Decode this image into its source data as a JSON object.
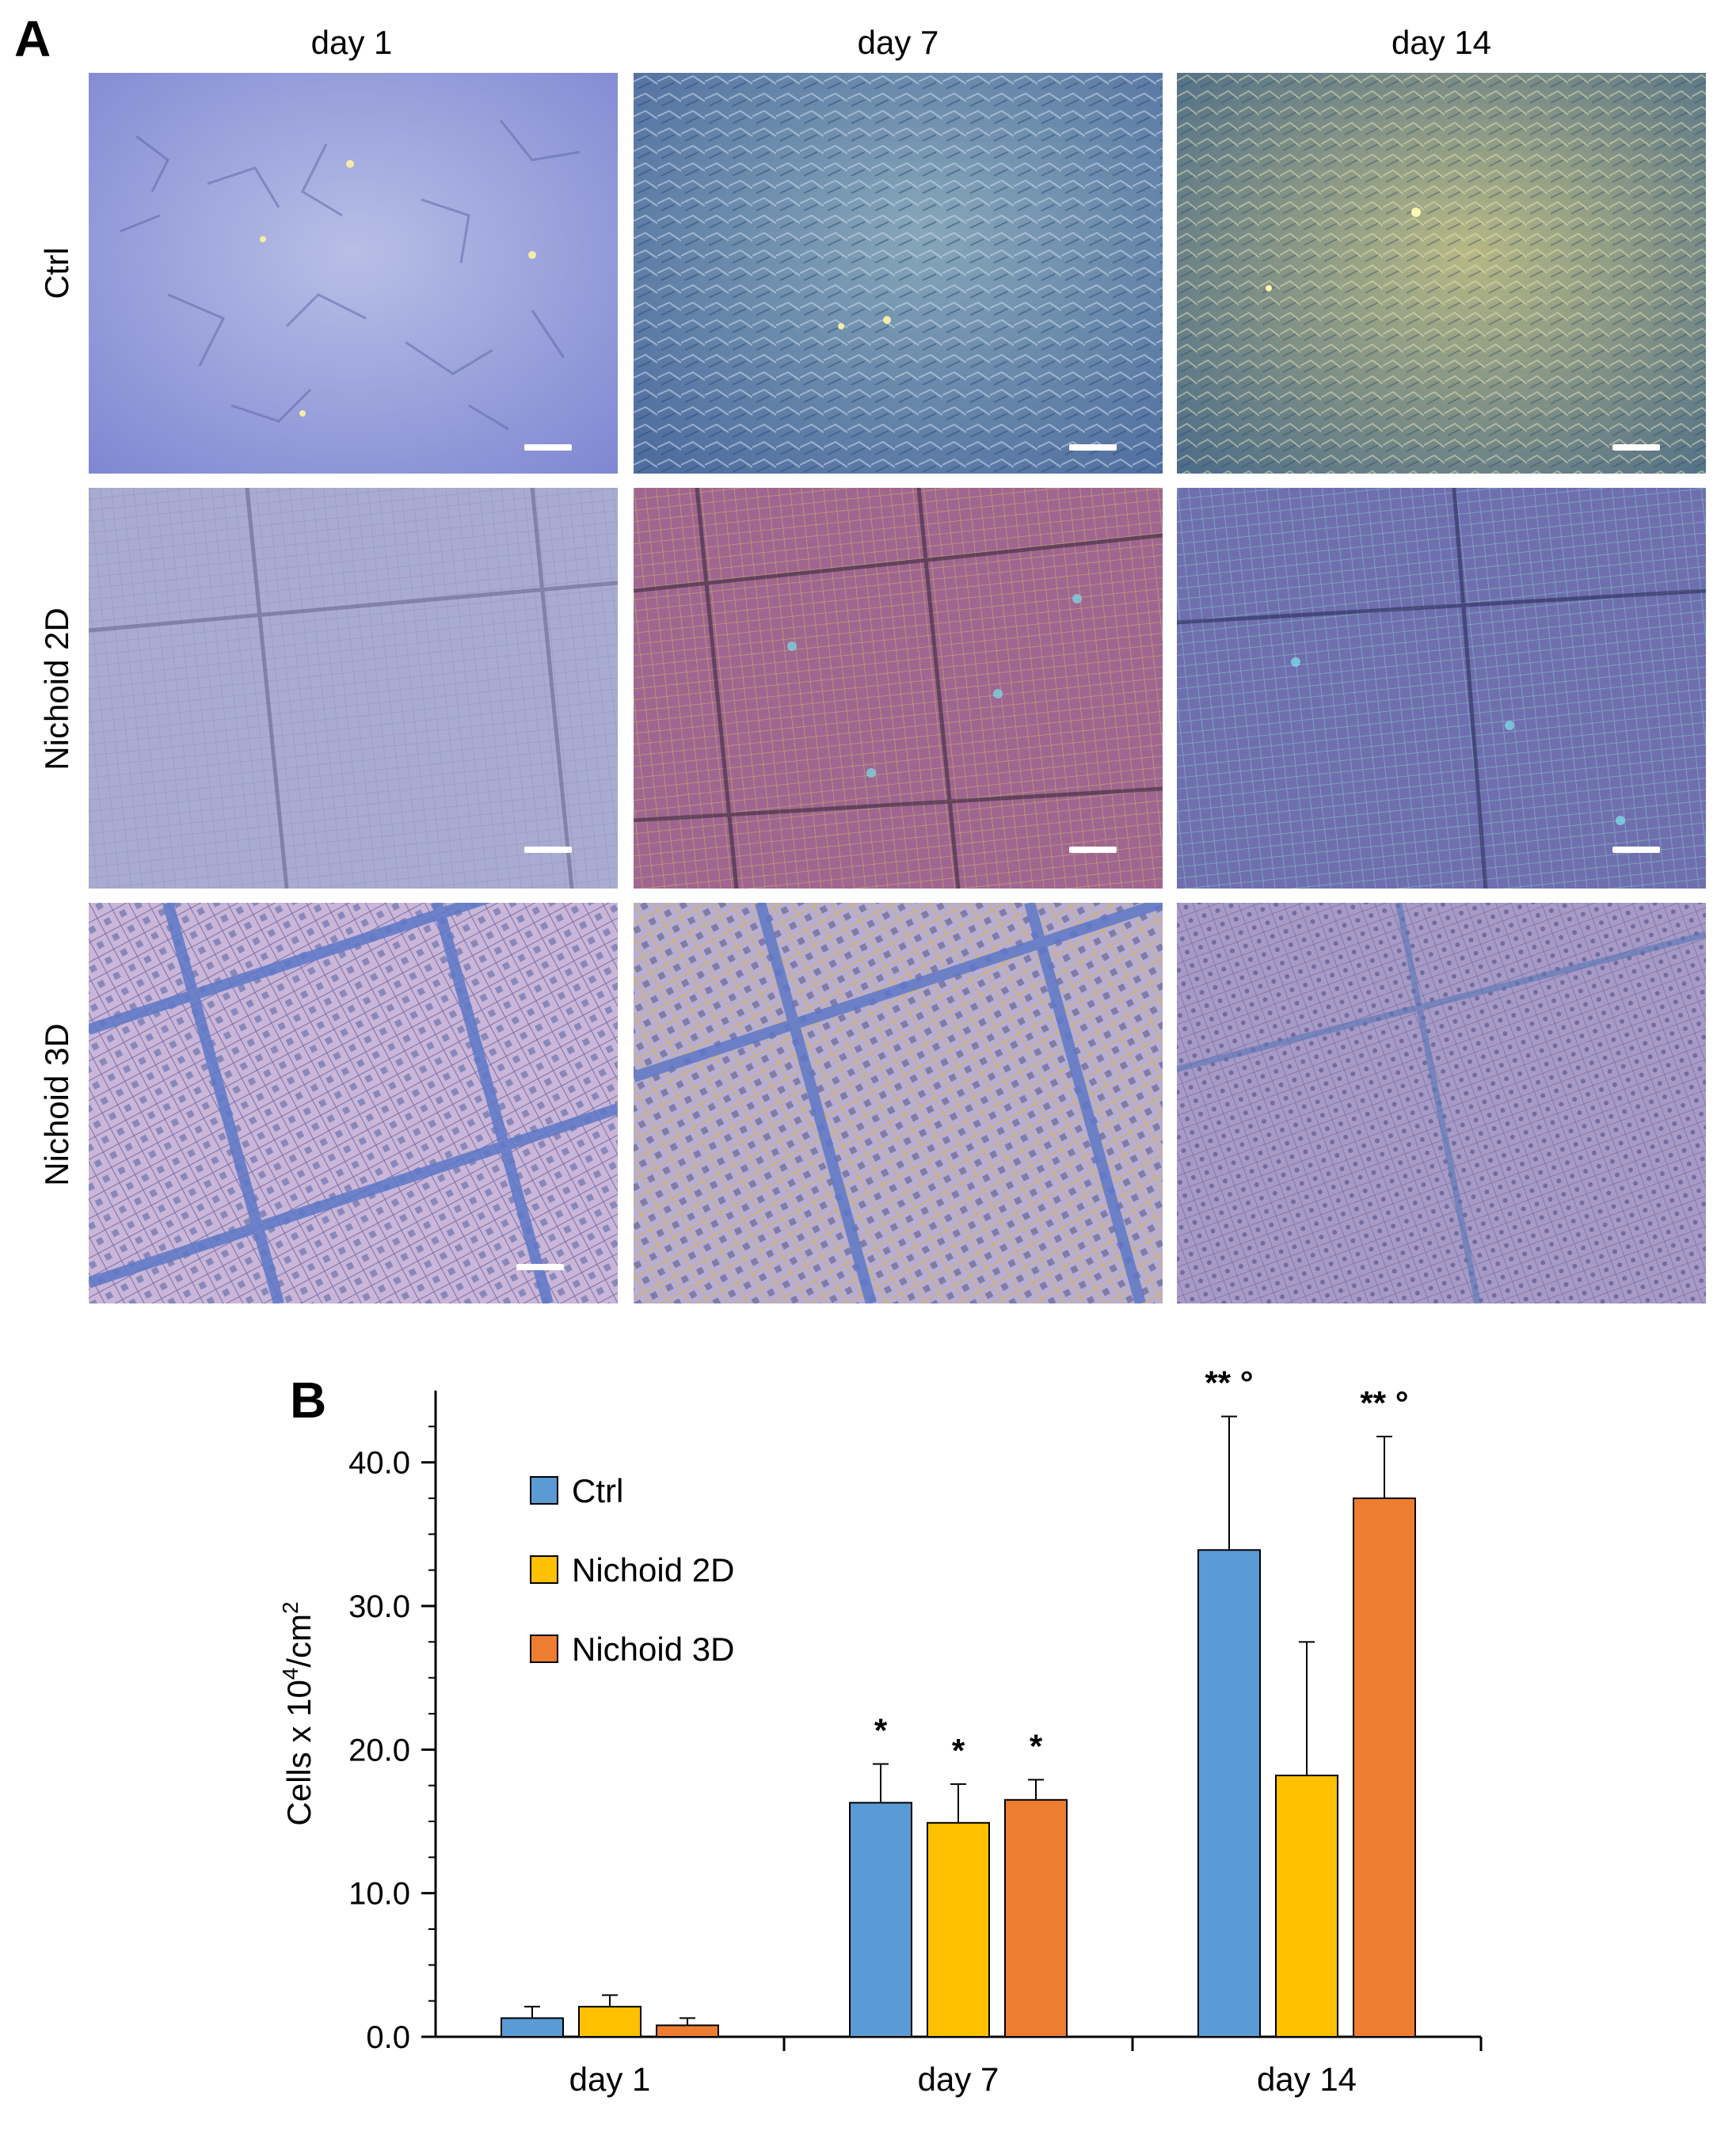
{
  "panels": {
    "a_label": "A",
    "b_label": "B"
  },
  "micrographs": {
    "columns": [
      "day 1",
      "day 7",
      "day 14"
    ],
    "rows": [
      "Ctrl",
      "Nichoid 2D",
      "Nichoid 3D"
    ]
  },
  "colors": {
    "ctrl": "#5B9BD5",
    "nichoid_2d": "#FFC000",
    "nichoid_3d": "#ED7D31"
  },
  "chart_data": {
    "type": "bar",
    "categories": [
      "day 1",
      "day 7",
      "day 14"
    ],
    "ylabel": "Cells x 10",
    "ylabel_sup": "4",
    "ylabel_tail": "/cm",
    "ylabel_sup2": "2",
    "ylim": [
      0,
      45
    ],
    "yticks": [
      "0.0",
      "10.0",
      "20.0",
      "30.0",
      "40.0"
    ],
    "ytick_values": [
      0,
      10,
      20,
      30,
      40
    ],
    "legend_position": "top-left",
    "series": [
      {
        "name": "Ctrl",
        "color": "#5B9BD5",
        "values": [
          1.3,
          16.3,
          33.9
        ],
        "errors": [
          0.8,
          2.7,
          9.3
        ],
        "annotations": [
          "",
          "*",
          "** °"
        ]
      },
      {
        "name": "Nichoid 2D",
        "color": "#FFC000",
        "values": [
          2.1,
          14.9,
          18.2
        ],
        "errors": [
          0.8,
          2.7,
          9.3
        ],
        "annotations": [
          "",
          "*",
          ""
        ]
      },
      {
        "name": "Nichoid 3D",
        "color": "#ED7D31",
        "values": [
          0.8,
          16.5,
          37.5
        ],
        "errors": [
          0.5,
          1.4,
          4.3
        ],
        "annotations": [
          "",
          "*",
          "** °"
        ]
      }
    ]
  }
}
